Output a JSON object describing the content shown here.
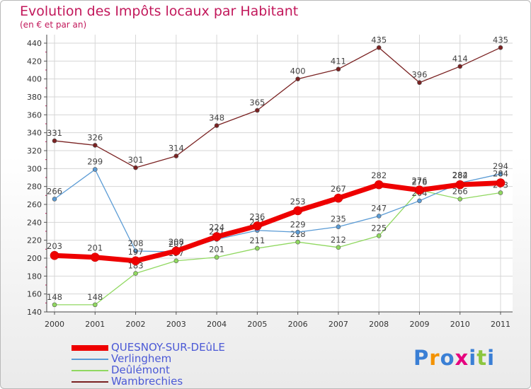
{
  "chart_data": {
    "type": "line",
    "title": "Evolution des Impôts locaux par Habitant",
    "subtitle": "(en € et par an)",
    "x": [
      "2000",
      "2001",
      "2002",
      "2003",
      "2004",
      "2005",
      "2006",
      "2007",
      "2008",
      "2009",
      "2010",
      "2011"
    ],
    "ylim": [
      140,
      440
    ],
    "yticks": [
      140,
      160,
      180,
      200,
      220,
      240,
      260,
      280,
      300,
      320,
      340,
      360,
      380,
      400,
      420,
      440
    ],
    "grid": true,
    "series": [
      {
        "name": "Wambrechies",
        "color": "#7a2222",
        "values": [
          331,
          326,
          301,
          314,
          348,
          365,
          400,
          411,
          435,
          396,
          414,
          435
        ]
      },
      {
        "name": "Deûlémont",
        "color": "#90d860",
        "values": [
          148,
          148,
          183,
          197,
          201,
          211,
          218,
          212,
          225,
          276,
          266,
          273
        ]
      },
      {
        "name": "Verlinghem",
        "color": "#5a9bd5",
        "values": [
          266,
          299,
          208,
          207,
          221,
          231,
          229,
          235,
          247,
          264,
          284,
          294
        ]
      },
      {
        "name": "QUESNOY-SUR-DEûLE",
        "color": "#ee0000",
        "values": [
          203,
          201,
          197,
          208,
          224,
          236,
          253,
          267,
          282,
          276,
          282,
          284
        ]
      }
    ],
    "legend": [
      "QUESNOY-SUR-DEûLE",
      "Verlinghem",
      "Deûlémont",
      "Wambrechies"
    ]
  },
  "logo": {
    "text": "Proxiti",
    "letter_colors": [
      "#3a7fd5",
      "#f39200",
      "#3a7fd5",
      "#e6007e",
      "#3a7fd5",
      "#8cc63f",
      "#3a7fd5"
    ]
  }
}
